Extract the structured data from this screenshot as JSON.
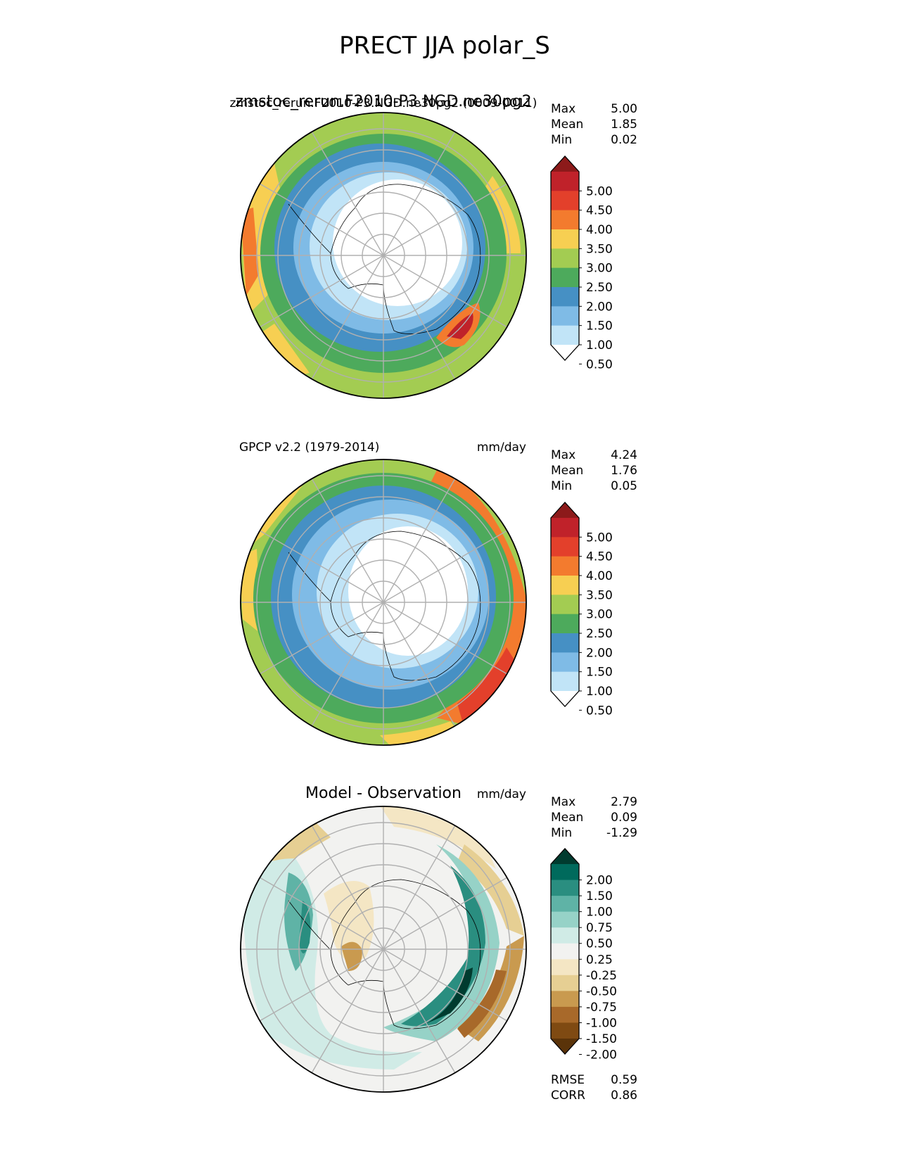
{
  "figure": {
    "title": "PRECT JJA polar_S"
  },
  "chart_data": [
    {
      "type": "heatmap",
      "projection": "south-polar-stereographic",
      "title_overlap_a": "zmstoc_rerun.F2010-P3.NGD.ne30pg2",
      "title_overlap_b": "zmstoc_rerun.F2010-P3.NGD.ne30pg2 (0009-0011)",
      "units": "mm/day",
      "stats": {
        "max_label": "Max",
        "max": "5.00",
        "mean_label": "Mean",
        "mean": "1.85",
        "min_label": "Min",
        "min": "0.02"
      },
      "colorbar": {
        "levels": [
          "5.00",
          "4.50",
          "4.00",
          "3.50",
          "3.00",
          "2.50",
          "2.00",
          "1.50",
          "1.00",
          "0.50"
        ],
        "colors": [
          "#8c1a1a",
          "#c0222a",
          "#e3402b",
          "#f37b2e",
          "#f7cf52",
          "#a3cc52",
          "#4daa5c",
          "#4690c4",
          "#7fbbe6",
          "#c1e4f7",
          "#ffffff"
        ]
      },
      "region_levels": [
        "ocean-outer-3.0",
        "band-2.5",
        "band-2.0",
        "band-1.5",
        "band-1.0",
        "coast-0.5",
        "interior-0"
      ],
      "hotspot_max": 5.0
    },
    {
      "type": "heatmap",
      "projection": "south-polar-stereographic",
      "title": "GPCP v2.2 (1979-2014)",
      "units": "mm/day",
      "stats": {
        "max_label": "Max",
        "max": "4.24",
        "mean_label": "Mean",
        "mean": "1.76",
        "min_label": "Min",
        "min": "0.05"
      },
      "colorbar": {
        "levels": [
          "5.00",
          "4.50",
          "4.00",
          "3.50",
          "3.00",
          "2.50",
          "2.00",
          "1.50",
          "1.00",
          "0.50"
        ],
        "colors": [
          "#8c1a1a",
          "#c0222a",
          "#e3402b",
          "#f37b2e",
          "#f7cf52",
          "#a3cc52",
          "#4daa5c",
          "#4690c4",
          "#7fbbe6",
          "#c1e4f7",
          "#ffffff"
        ]
      }
    },
    {
      "type": "heatmap",
      "projection": "south-polar-stereographic",
      "title": "Model - Observation",
      "units": "mm/day",
      "stats": {
        "max_label": "Max",
        "max": "2.79",
        "mean_label": "Mean",
        "mean": "0.09",
        "min_label": "Min",
        "min": "-1.29"
      },
      "metrics": {
        "rmse_label": "RMSE",
        "rmse": "0.59",
        "corr_label": "CORR",
        "corr": "0.86"
      },
      "colorbar": {
        "levels": [
          "2.00",
          "1.50",
          "1.00",
          "0.75",
          "0.50",
          "0.25",
          "-0.25",
          "-0.50",
          "-0.75",
          "-1.00",
          "-1.50",
          "-2.00"
        ],
        "colors": [
          "#003b2f",
          "#006a5c",
          "#2a8e80",
          "#5fb3a6",
          "#96d2c7",
          "#d0ebe6",
          "#f2f2f0",
          "#f4e6c4",
          "#e6cf93",
          "#c99a4f",
          "#a8692a",
          "#7f4a12",
          "#5a3309"
        ]
      }
    }
  ],
  "colors": {
    "land_outline": "#000000",
    "graticule": "#b0b0b0"
  }
}
